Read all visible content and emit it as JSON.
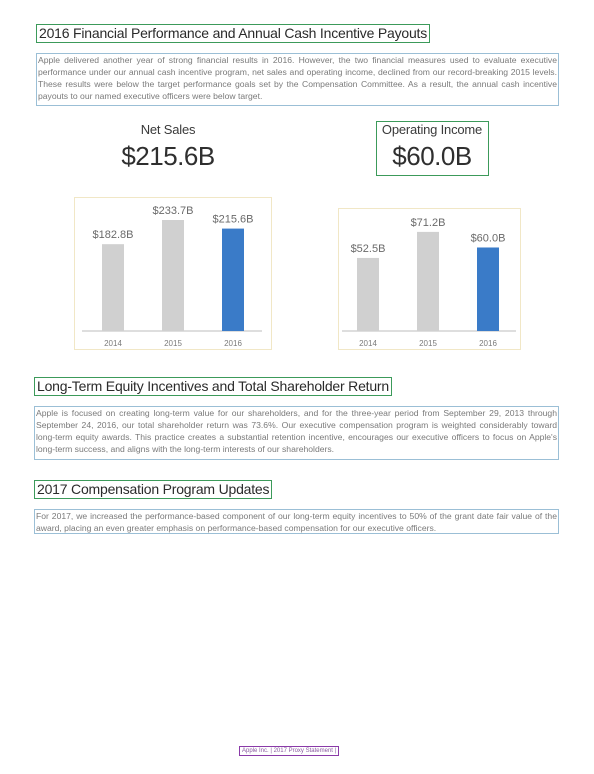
{
  "section1": {
    "heading": "2016 Financial Performance and Annual Cash Incentive Payouts",
    "body": "Apple delivered another year of strong financial results in 2016. However, the two financial measures used to evaluate executive performance under our annual cash incentive program, net sales and operating income, declined from our record-breaking 2015 levels. These results were below the target performance goals set by the Compensation Committee. As a result, the annual cash incentive payouts to our named executive officers were below target."
  },
  "kpis": {
    "net_sales_label": "Net Sales",
    "net_sales_value": "$215.6B",
    "operating_income_label": "Operating Income",
    "operating_income_value": "$60.0B"
  },
  "chart_data": [
    {
      "type": "bar",
      "categories": [
        "2014",
        "2015",
        "2016"
      ],
      "values": [
        182.8,
        233.7,
        215.6
      ],
      "data_labels": [
        "$182.8B",
        "$233.7B",
        "$215.6B"
      ],
      "ylim": [
        0,
        240
      ],
      "colors": [
        "#d0d0d0",
        "#d0d0d0",
        "#3a7bc8"
      ],
      "grid": false
    },
    {
      "type": "bar",
      "categories": [
        "2014",
        "2015",
        "2016"
      ],
      "values": [
        52.5,
        71.2,
        60.0
      ],
      "data_labels": [
        "$52.5B",
        "$71.2B",
        "$60.0B"
      ],
      "ylim": [
        0,
        74
      ],
      "colors": [
        "#d0d0d0",
        "#d0d0d0",
        "#3a7bc8"
      ],
      "grid": false
    }
  ],
  "section2": {
    "heading": "Long-Term Equity Incentives and Total Shareholder Return",
    "body": "Apple is focused on creating long-term value for our shareholders, and for the three-year period from September 29, 2013 through September 24, 2016, our total shareholder return was 73.6%. Our executive compensation program is weighted considerably toward long-term equity awards. This practice creates a substantial retention incentive, encourages our executive officers to focus on Apple's long-term success, and aligns with the long-term interests of our shareholders."
  },
  "section3": {
    "heading": "2017 Compensation Program Updates",
    "body": "For 2017, we increased the performance-based component of our long-term equity incentives to 50% of the grant date fair value of the award, placing an even greater emphasis on performance-based compensation for our executive officers."
  },
  "footer": {
    "text": "Apple Inc. | 2017 Proxy Statement |"
  }
}
